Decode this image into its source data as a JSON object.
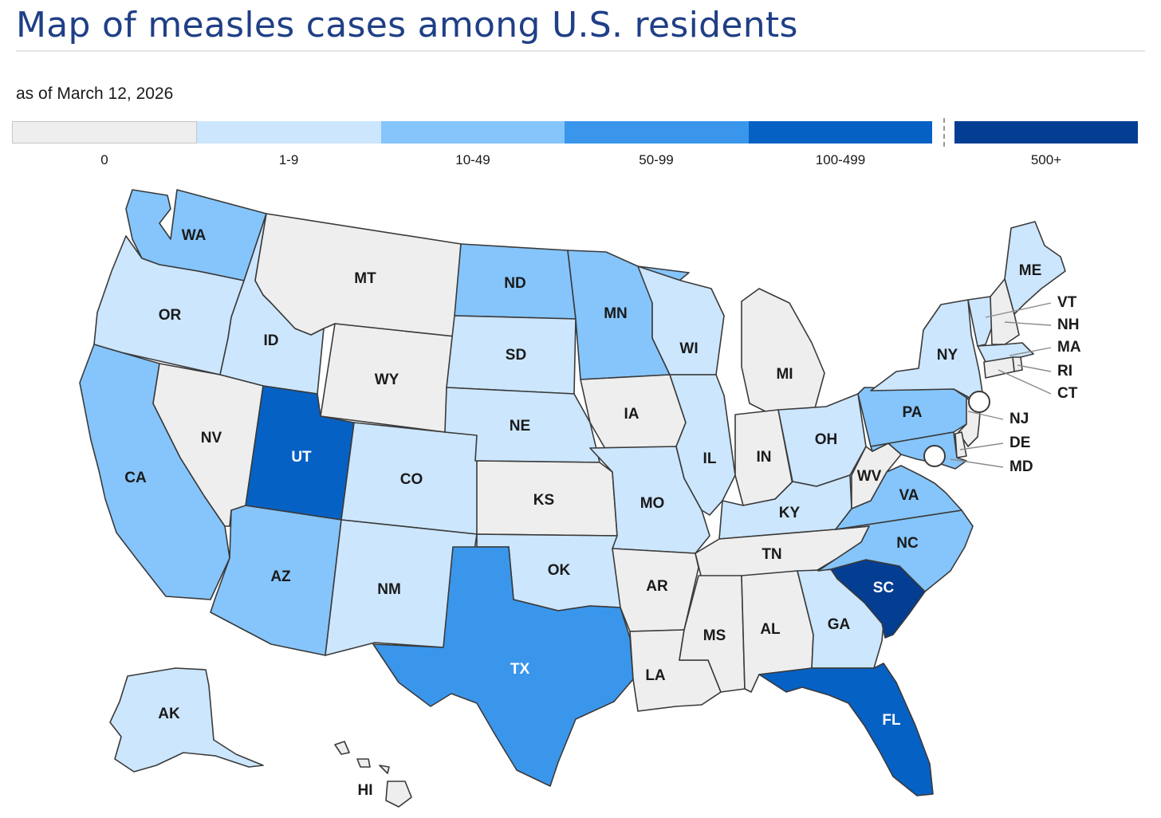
{
  "title": "Map of measles cases among U.S. residents",
  "subtitle": "as of March 12, 2026",
  "legend": [
    {
      "label": "0",
      "color": "#eeeeee"
    },
    {
      "label": "1-9",
      "color": "#cce6fd"
    },
    {
      "label": "10-49",
      "color": "#85c5fb"
    },
    {
      "label": "50-99",
      "color": "#3a96eb"
    },
    {
      "label": "100-499",
      "color": "#0661c4"
    },
    {
      "label": "500+",
      "color": "#043e92"
    }
  ],
  "states": [
    {
      "abbr": "WA",
      "category": "10-49"
    },
    {
      "abbr": "OR",
      "category": "1-9"
    },
    {
      "abbr": "CA",
      "category": "10-49"
    },
    {
      "abbr": "ID",
      "category": "1-9"
    },
    {
      "abbr": "NV",
      "category": "0"
    },
    {
      "abbr": "MT",
      "category": "0"
    },
    {
      "abbr": "WY",
      "category": "0"
    },
    {
      "abbr": "UT",
      "category": "100-499"
    },
    {
      "abbr": "AZ",
      "category": "10-49"
    },
    {
      "abbr": "CO",
      "category": "1-9"
    },
    {
      "abbr": "NM",
      "category": "1-9"
    },
    {
      "abbr": "ND",
      "category": "10-49"
    },
    {
      "abbr": "SD",
      "category": "1-9"
    },
    {
      "abbr": "NE",
      "category": "1-9"
    },
    {
      "abbr": "KS",
      "category": "0"
    },
    {
      "abbr": "OK",
      "category": "1-9"
    },
    {
      "abbr": "TX",
      "category": "50-99"
    },
    {
      "abbr": "MN",
      "category": "10-49"
    },
    {
      "abbr": "IA",
      "category": "0"
    },
    {
      "abbr": "MO",
      "category": "1-9"
    },
    {
      "abbr": "AR",
      "category": "0"
    },
    {
      "abbr": "LA",
      "category": "0"
    },
    {
      "abbr": "WI",
      "category": "1-9"
    },
    {
      "abbr": "IL",
      "category": "1-9"
    },
    {
      "abbr": "MI",
      "category": "0"
    },
    {
      "abbr": "IN",
      "category": "0"
    },
    {
      "abbr": "OH",
      "category": "1-9"
    },
    {
      "abbr": "KY",
      "category": "1-9"
    },
    {
      "abbr": "TN",
      "category": "0"
    },
    {
      "abbr": "MS",
      "category": "0"
    },
    {
      "abbr": "AL",
      "category": "0"
    },
    {
      "abbr": "GA",
      "category": "1-9"
    },
    {
      "abbr": "FL",
      "category": "100-499"
    },
    {
      "abbr": "SC",
      "category": "500+"
    },
    {
      "abbr": "NC",
      "category": "10-49"
    },
    {
      "abbr": "VA",
      "category": "10-49"
    },
    {
      "abbr": "WV",
      "category": "0"
    },
    {
      "abbr": "PA",
      "category": "10-49"
    },
    {
      "abbr": "NY",
      "category": "1-9"
    },
    {
      "abbr": "ME",
      "category": "1-9"
    },
    {
      "abbr": "AK",
      "category": "1-9"
    },
    {
      "abbr": "HI",
      "category": "0"
    },
    {
      "abbr": "VT",
      "category": "1-9"
    },
    {
      "abbr": "NH",
      "category": "0"
    },
    {
      "abbr": "MA",
      "category": "1-9"
    },
    {
      "abbr": "RI",
      "category": "0"
    },
    {
      "abbr": "CT",
      "category": "0"
    },
    {
      "abbr": "NJ",
      "category": "0"
    },
    {
      "abbr": "DE",
      "category": "0"
    },
    {
      "abbr": "MD",
      "category": "10-49"
    }
  ]
}
